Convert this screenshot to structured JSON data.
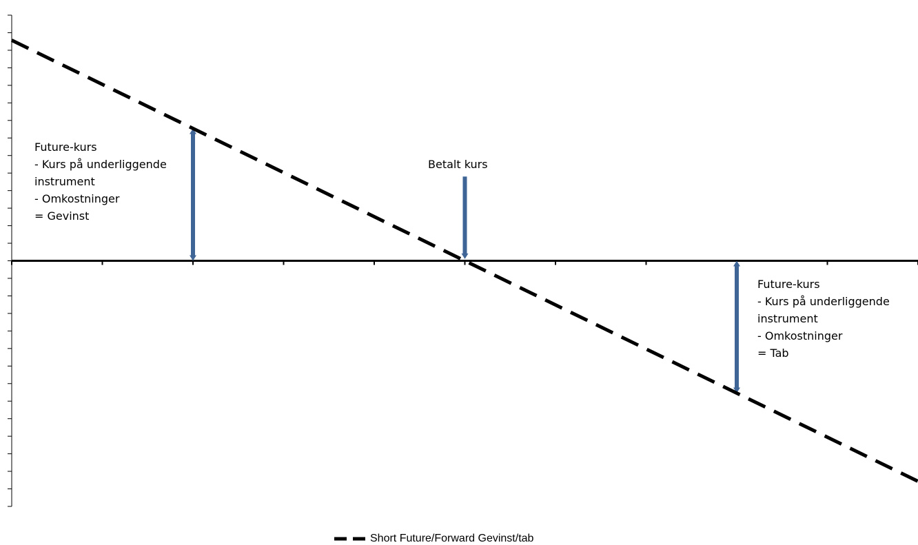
{
  "chart_data": {
    "type": "line",
    "title": "",
    "xlabel": "",
    "ylabel": "",
    "x_categories": 10,
    "series": [
      {
        "name": "Short Future/Forward Gevinst/tab",
        "style": "dashed",
        "color": "#000000",
        "x": [
          0,
          10
        ],
        "y": [
          12.3,
          -12.3
        ]
      }
    ],
    "ylim": [
      -13.7,
      13.7
    ],
    "xlim": [
      0,
      10
    ],
    "annotations": [
      {
        "name": "gevinst",
        "lines": [
          "Future-kurs",
          "- Kurs på underliggende",
          "instrument",
          "- Omkostninger",
          "= Gevinst"
        ],
        "arrow": {
          "x": 2,
          "y_from": 0,
          "y_to": 7.38,
          "type": "double"
        }
      },
      {
        "name": "betalt",
        "lines": [
          "Betalt kurs"
        ],
        "arrow": {
          "x": 5,
          "y_from": 4.7,
          "y_to": 0.1,
          "type": "down"
        }
      },
      {
        "name": "tab",
        "lines": [
          "Future-kurs",
          "- Kurs på underliggende",
          "instrument",
          "- Omkostninger",
          "= Tab"
        ],
        "arrow": {
          "x": 8,
          "y_from": 0,
          "y_to": -7.38,
          "type": "double"
        }
      }
    ],
    "arrow_color": "#3f6597",
    "legend": {
      "position": "bottom-center",
      "label": "Short Future/Forward Gevinst/tab"
    },
    "grid": false
  }
}
